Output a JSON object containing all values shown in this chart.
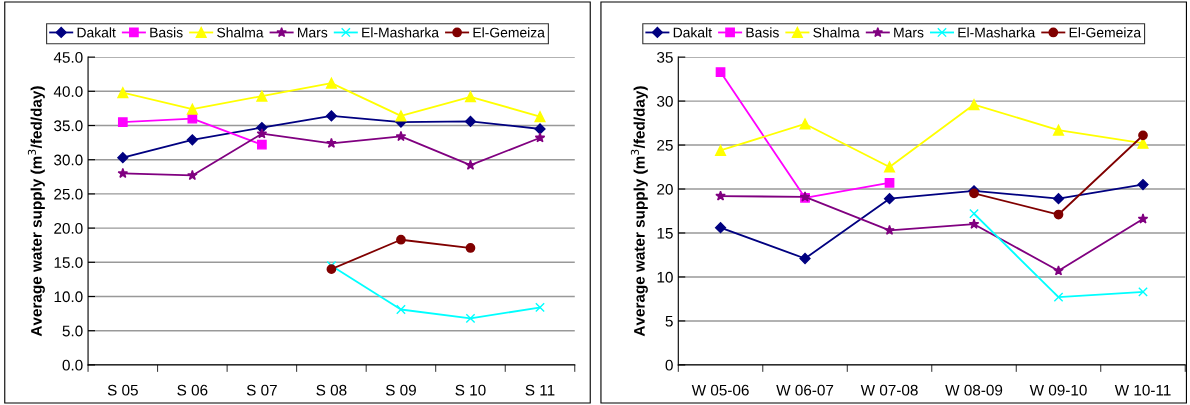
{
  "chart_data": [
    {
      "type": "line",
      "ylabel": "Average water supply (m$^{3}$/fed/day)",
      "categories": [
        "S 05",
        "S 06",
        "S 07",
        "S 08",
        "S 09",
        "S 10",
        "S 11"
      ],
      "ylim": [
        0,
        45
      ],
      "yticks": [
        {
          "value": 0,
          "label": "0.0"
        },
        {
          "value": 5,
          "label": "5.0"
        },
        {
          "value": 10,
          "label": "10.0"
        },
        {
          "value": 15,
          "label": "15.0"
        },
        {
          "value": 20,
          "label": "20.0"
        },
        {
          "value": 25,
          "label": "25.0"
        },
        {
          "value": 30,
          "label": "30.0"
        },
        {
          "value": 35,
          "label": "35.0"
        },
        {
          "value": 40,
          "label": "40.0"
        },
        {
          "value": 45,
          "label": "45.0"
        }
      ],
      "grid": "y",
      "legend": "top",
      "series": [
        {
          "name": "Dakalt",
          "color": "#000080",
          "marker": "diamond",
          "values": [
            30.3,
            32.9,
            34.7,
            36.4,
            35.5,
            35.6,
            34.5
          ]
        },
        {
          "name": "Basis",
          "color": "#ff00ff",
          "marker": "square",
          "values": [
            35.5,
            36.0,
            32.2,
            null,
            null,
            null,
            null
          ]
        },
        {
          "name": "Shalma",
          "color": "#ffff00",
          "marker": "triangle",
          "values": [
            39.8,
            37.4,
            39.3,
            41.2,
            36.4,
            39.2,
            36.3
          ]
        },
        {
          "name": "Mars",
          "color": "#800080",
          "marker": "star",
          "values": [
            28.0,
            27.7,
            33.8,
            32.4,
            33.4,
            29.2,
            33.2
          ]
        },
        {
          "name": "El-Masharka",
          "color": "#00ffff",
          "marker": "cross",
          "values": [
            null,
            null,
            null,
            14.5,
            8.1,
            6.8,
            8.4
          ]
        },
        {
          "name": "El-Gemeiza",
          "color": "#800000",
          "marker": "circle",
          "values": [
            null,
            null,
            null,
            14.0,
            18.3,
            17.1,
            null
          ]
        }
      ]
    },
    {
      "type": "line",
      "ylabel": "Average water supply (m$^{3}$/fed/day)",
      "categories": [
        "W 05-06",
        "W 06-07",
        "W 07-08",
        "W 08-09",
        "W 09-10",
        "W 10-11"
      ],
      "ylim": [
        0,
        35
      ],
      "yticks": [
        0,
        5,
        10,
        15,
        20,
        25,
        30,
        35
      ],
      "grid": "y",
      "legend": "top",
      "series": [
        {
          "name": "Dakalt",
          "color": "#000080",
          "marker": "diamond",
          "values": [
            15.6,
            12.1,
            18.9,
            19.8,
            18.9,
            20.5
          ]
        },
        {
          "name": "Basis",
          "color": "#ff00ff",
          "marker": "square",
          "values": [
            33.3,
            19.0,
            20.7,
            null,
            null,
            null
          ]
        },
        {
          "name": "Shalma",
          "color": "#ffff00",
          "marker": "triangle",
          "values": [
            24.4,
            27.4,
            22.5,
            29.6,
            26.7,
            25.2
          ]
        },
        {
          "name": "Mars",
          "color": "#800080",
          "marker": "star",
          "values": [
            19.2,
            19.1,
            15.3,
            16.0,
            10.7,
            16.6
          ]
        },
        {
          "name": "El-Masharka",
          "color": "#00ffff",
          "marker": "cross",
          "values": [
            null,
            null,
            null,
            17.2,
            7.7,
            8.3
          ]
        },
        {
          "name": "El-Gemeiza",
          "color": "#800000",
          "marker": "circle",
          "values": [
            null,
            null,
            null,
            19.5,
            17.1,
            26.1
          ]
        }
      ]
    }
  ]
}
